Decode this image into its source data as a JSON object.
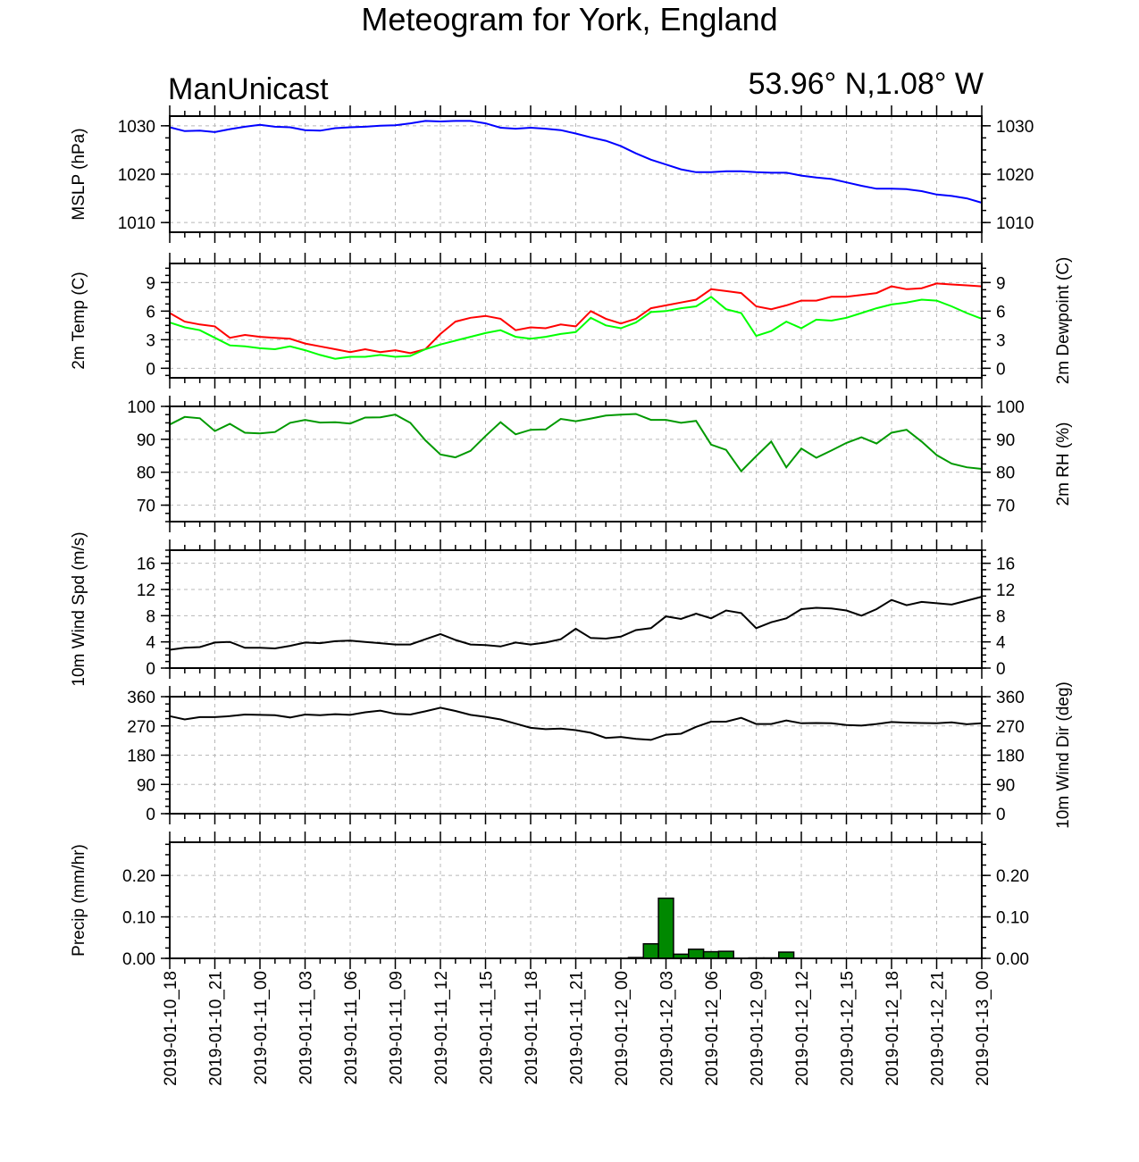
{
  "title": "Meteogram for York, England",
  "model": "ManUnicast",
  "location": "53.96° N,1.08° W",
  "chart_data": {
    "type": "line",
    "x_labels": [
      "2019-01-10_18",
      "2019-01-10_21",
      "2019-01-11_00",
      "2019-01-11_03",
      "2019-01-11_06",
      "2019-01-11_09",
      "2019-01-11_12",
      "2019-01-11_15",
      "2019-01-11_18",
      "2019-01-11_21",
      "2019-01-12_00",
      "2019-01-12_03",
      "2019-01-12_06",
      "2019-01-12_09",
      "2019-01-12_12",
      "2019-01-12_15",
      "2019-01-12_18",
      "2019-01-12_21",
      "2019-01-13_00"
    ],
    "x_hours_range": [
      0,
      54
    ],
    "grid": true,
    "panels": [
      {
        "id": "mslp",
        "ylabel_left": "MSLP (hPa)",
        "ylabel_right": "",
        "ylim": [
          1008,
          1032
        ],
        "yticks": [
          1010,
          1020,
          1030
        ],
        "series": [
          {
            "name": "",
            "color": "#0000ff",
            "style": "line",
            "values": [
              1029.7,
              1028.9,
              1029.0,
              1028.7,
              1029.3,
              1029.8,
              1030.2,
              1029.8,
              1029.7,
              1029.1,
              1029.0,
              1029.5,
              1029.7,
              1029.8,
              1030.0,
              1030.1,
              1030.5,
              1031.0,
              1030.9,
              1031.0,
              1031.0,
              1030.5,
              1029.6,
              1029.4,
              1029.6,
              1029.4,
              1029.1,
              1028.4,
              1027.6,
              1026.9,
              1025.8,
              1024.3,
              1023.0,
              1022.0,
              1021.0,
              1020.4,
              1020.4,
              1020.6,
              1020.6,
              1020.4,
              1020.3,
              1020.3,
              1019.7,
              1019.3,
              1019.0,
              1018.3,
              1017.6,
              1017.0,
              1017.0,
              1016.9,
              1016.5,
              1015.8,
              1015.5,
              1015.0,
              1014.1
            ]
          }
        ]
      },
      {
        "id": "temp",
        "ylabel_left": "2m Temp (C)",
        "ylabel_right": "2m Dewpoint (C)",
        "ylim": [
          -1,
          11
        ],
        "yticks": [
          0,
          3,
          6,
          9
        ],
        "series": [
          {
            "name": "",
            "color": "#ff0000",
            "style": "line",
            "values": [
              5.8,
              4.9,
              4.6,
              4.4,
              3.2,
              3.5,
              3.3,
              3.2,
              3.1,
              2.6,
              2.3,
              2.0,
              1.7,
              2.0,
              1.7,
              1.9,
              1.6,
              2.0,
              3.6,
              4.9,
              5.3,
              5.5,
              5.2,
              4.0,
              4.3,
              4.2,
              4.6,
              4.4,
              6.0,
              5.2,
              4.7,
              5.2,
              6.3,
              6.6,
              6.9,
              7.2,
              8.3,
              8.1,
              7.9,
              6.5,
              6.2,
              6.6,
              7.1,
              7.1,
              7.5,
              7.5,
              7.7,
              7.9,
              8.6,
              8.3,
              8.4,
              8.9,
              8.8,
              8.7,
              8.6
            ]
          },
          {
            "name": "",
            "color": "#00ff00",
            "style": "line",
            "values": [
              4.8,
              4.3,
              4.0,
              3.2,
              2.4,
              2.3,
              2.1,
              2.0,
              2.3,
              1.9,
              1.4,
              1.0,
              1.2,
              1.2,
              1.4,
              1.2,
              1.3,
              2.0,
              2.5,
              2.9,
              3.3,
              3.7,
              4.0,
              3.3,
              3.1,
              3.3,
              3.6,
              3.8,
              5.3,
              4.5,
              4.2,
              4.8,
              5.9,
              6.0,
              6.3,
              6.5,
              7.5,
              6.2,
              5.8,
              3.4,
              3.9,
              4.9,
              4.2,
              5.1,
              5.0,
              5.3,
              5.8,
              6.3,
              6.7,
              6.9,
              7.2,
              7.1,
              6.5,
              5.8,
              5.2
            ]
          }
        ]
      },
      {
        "id": "rh",
        "ylabel_left": "",
        "ylabel_right": "2m RH (%)",
        "ylim": [
          65,
          100
        ],
        "yticks": [
          70,
          80,
          90,
          100
        ],
        "series": [
          {
            "name": "",
            "color": "#009900",
            "style": "line",
            "values": [
              94.5,
              96.8,
              96.4,
              92.5,
              94.7,
              92.0,
              91.8,
              92.2,
              95.0,
              95.9,
              95.1,
              95.2,
              94.8,
              96.6,
              96.7,
              97.5,
              95.0,
              89.7,
              85.4,
              84.5,
              86.5,
              91.0,
              95.2,
              91.5,
              92.9,
              93.0,
              96.2,
              95.5,
              96.3,
              97.2,
              97.5,
              97.7,
              95.9,
              95.9,
              95.0,
              95.6,
              88.4,
              86.8,
              80.3,
              84.9,
              89.3,
              81.5,
              87.2,
              84.4,
              86.6,
              88.9,
              90.6,
              88.7,
              92.0,
              92.9,
              89.3,
              85.2,
              82.6,
              81.5,
              81.0
            ]
          }
        ]
      },
      {
        "id": "wspd",
        "ylabel_left": "10m Wind Spd (m/s)",
        "ylabel_right": "",
        "ylim": [
          0,
          18
        ],
        "yticks": [
          0,
          4,
          8,
          12,
          16
        ],
        "series": [
          {
            "name": "",
            "color": "#000000",
            "style": "line",
            "values": [
              2.8,
              3.1,
              3.2,
              3.9,
              4.0,
              3.1,
              3.1,
              3.0,
              3.4,
              3.9,
              3.8,
              4.1,
              4.2,
              4.0,
              3.8,
              3.6,
              3.6,
              4.4,
              5.2,
              4.3,
              3.6,
              3.5,
              3.3,
              3.9,
              3.6,
              3.9,
              4.4,
              6.0,
              4.6,
              4.5,
              4.8,
              5.8,
              6.1,
              7.9,
              7.5,
              8.3,
              7.6,
              8.8,
              8.4,
              6.1,
              7.0,
              7.6,
              9.0,
              9.2,
              9.1,
              8.8,
              8.0,
              9.0,
              10.4,
              9.6,
              10.1,
              9.9,
              9.7,
              10.3,
              10.9
            ]
          }
        ]
      },
      {
        "id": "wdir",
        "ylabel_left": "",
        "ylabel_right": "10m Wind Dir (deg)",
        "ylim": [
          0,
          360
        ],
        "yticks": [
          0,
          90,
          180,
          270,
          360
        ],
        "series": [
          {
            "name": "",
            "color": "#000000",
            "style": "line",
            "values": [
              300,
              290,
              297,
              297,
              300,
              305,
              304,
              303,
              296,
              305,
              303,
              306,
              304,
              312,
              317,
              307,
              305,
              315,
              326,
              316,
              304,
              298,
              290,
              277,
              264,
              260,
              262,
              257,
              249,
              233,
              236,
              230,
              227,
              243,
              246,
              267,
              283,
              283,
              295,
              276,
              276,
              287,
              278,
              279,
              278,
              273,
              271,
              276,
              282,
              280,
              279,
              278,
              281,
              275,
              278
            ]
          }
        ]
      },
      {
        "id": "precip",
        "ylabel_left": "Precip (mm/hr)",
        "ylabel_right": "",
        "ylim": [
          0,
          0.28
        ],
        "yticks": [
          0.0,
          0.1,
          0.2
        ],
        "series": [
          {
            "name": "",
            "color": "#008800",
            "style": "bar",
            "values": [
              0,
              0,
              0,
              0,
              0,
              0,
              0,
              0,
              0,
              0,
              0,
              0,
              0,
              0,
              0,
              0,
              0,
              0,
              0,
              0,
              0,
              0,
              0,
              0,
              0,
              0,
              0,
              0,
              0,
              0,
              0,
              0.002,
              0.035,
              0.145,
              0.01,
              0.022,
              0.016,
              0.017,
              0,
              0.001,
              0.001,
              0.015,
              0,
              0,
              0,
              0,
              0,
              0,
              0,
              0,
              0,
              0,
              0,
              0,
              0
            ]
          }
        ]
      }
    ]
  }
}
